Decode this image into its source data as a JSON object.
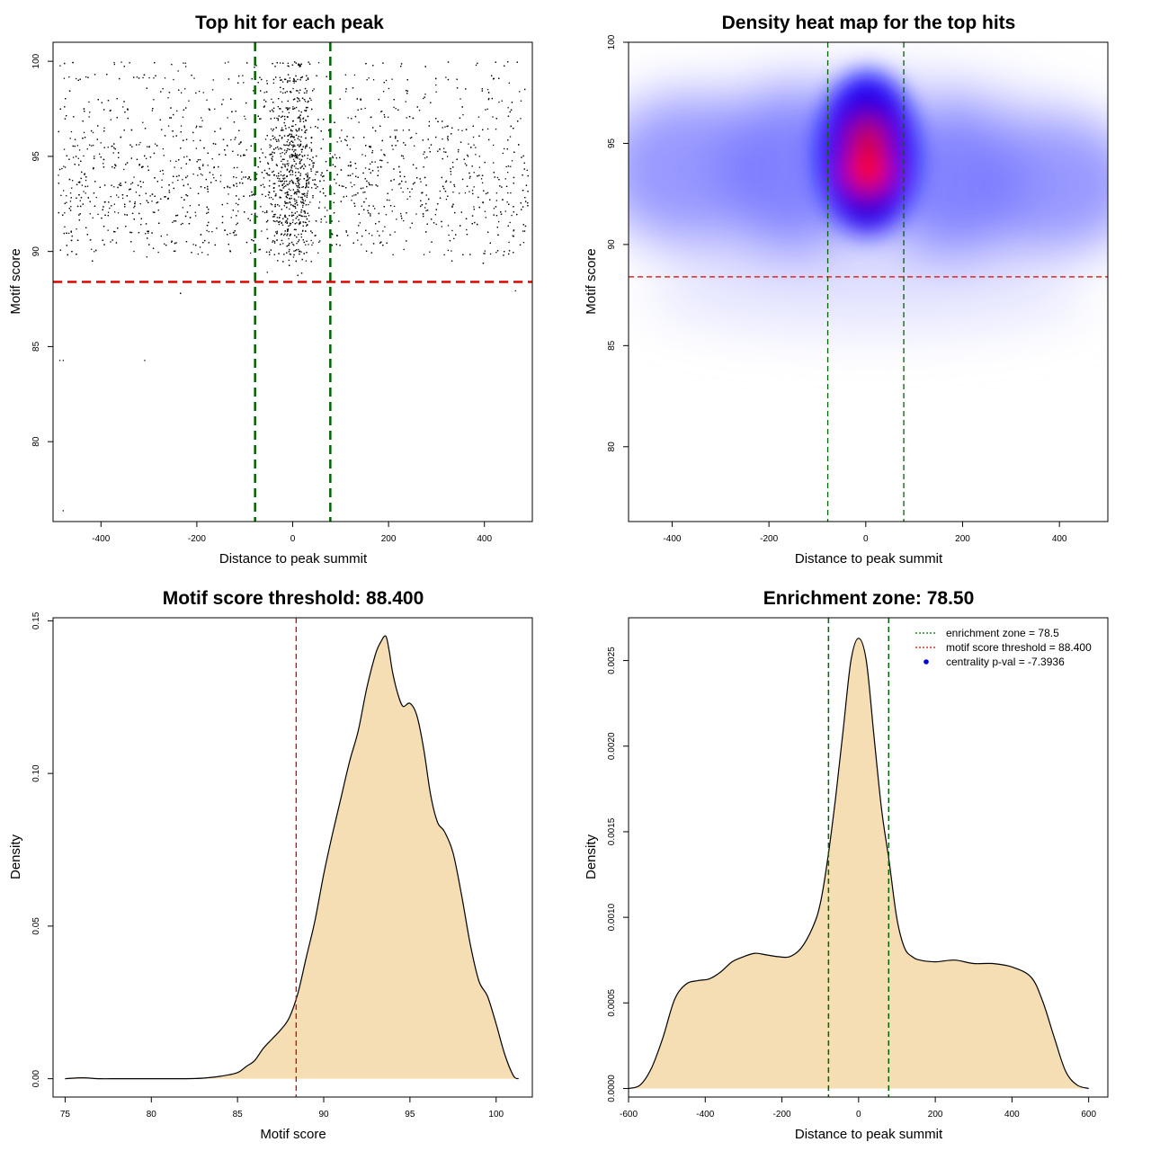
{
  "chart_data": [
    {
      "type": "scatter",
      "title": "Top hit for each peak",
      "xlabel": "Distance to peak summit",
      "ylabel": "Motif score",
      "xlim": [
        -500,
        500
      ],
      "ylim": [
        75.8,
        101
      ],
      "xticks": [
        -400,
        -200,
        0,
        200,
        400
      ],
      "yticks": [
        80,
        85,
        90,
        95,
        100
      ],
      "points_summary": "approximately 5000 points; x spread roughly uniform in [-500, 500] with concentration in [-80, 80]; y mostly between 88 and 100 with concentration near 94",
      "hlines": [
        {
          "y": 88.4,
          "color": "#dd0000",
          "style": "dashed"
        }
      ],
      "vlines": [
        {
          "x": -78.5,
          "color": "#006400",
          "style": "dashed"
        },
        {
          "x": 78.5,
          "color": "#006400",
          "style": "dashed"
        }
      ]
    },
    {
      "type": "heatmap",
      "title": "Density heat map for the top hits",
      "xlabel": "Distance to peak summit",
      "ylabel": "Motif score",
      "xlim": [
        -490,
        500
      ],
      "ylim": [
        76.3,
        100
      ],
      "xticks": [
        -400,
        -200,
        0,
        200,
        400
      ],
      "yticks": [
        80,
        85,
        90,
        95,
        100
      ],
      "color_scale": [
        "#ffffff",
        "#0000ff",
        "#ff0000"
      ],
      "peak": {
        "x": 0,
        "y": 93.7
      },
      "hlines": [
        {
          "y": 88.4,
          "color": "#dd0000",
          "style": "dashed"
        }
      ],
      "vlines": [
        {
          "x": -78.5,
          "color": "#006400",
          "style": "dashed"
        },
        {
          "x": 78.5,
          "color": "#006400",
          "style": "dashed"
        }
      ]
    },
    {
      "type": "area",
      "title": "Motif score threshold: 88.400",
      "xlabel": "Motif score",
      "ylabel": "Density",
      "xlim": [
        74.3,
        102.1
      ],
      "ylim": [
        -0.006,
        0.151
      ],
      "xticks": [
        75,
        80,
        85,
        90,
        95,
        100
      ],
      "yticks": [
        0.0,
        0.05,
        0.1,
        0.15
      ],
      "ytick_labels": [
        "0.00",
        "0.05",
        "0.10",
        "0.15"
      ],
      "fill": "#f5deb3",
      "x": [
        75,
        76,
        77,
        78,
        79,
        80,
        81,
        82,
        83,
        84,
        85,
        85.5,
        86,
        86.5,
        87,
        87.5,
        88,
        88.5,
        89,
        89.5,
        90,
        90.5,
        91,
        91.5,
        92,
        92.5,
        93,
        93.3,
        93.6,
        93.8,
        94,
        94.3,
        94.6,
        95,
        95.4,
        95.8,
        96.2,
        96.6,
        97,
        97.5,
        98,
        98.5,
        99,
        99.5,
        100,
        100.5,
        101,
        101.3
      ],
      "y": [
        0.0,
        0.0003,
        0.0,
        0.0,
        0.0,
        0.0,
        0.0,
        0.0,
        0.0002,
        0.0008,
        0.002,
        0.004,
        0.006,
        0.01,
        0.013,
        0.016,
        0.02,
        0.028,
        0.04,
        0.052,
        0.067,
        0.08,
        0.092,
        0.104,
        0.114,
        0.128,
        0.139,
        0.143,
        0.145,
        0.14,
        0.133,
        0.126,
        0.122,
        0.123,
        0.119,
        0.108,
        0.093,
        0.084,
        0.081,
        0.074,
        0.06,
        0.044,
        0.032,
        0.027,
        0.018,
        0.008,
        0.001,
        0.0
      ]
    },
    {
      "type": "area",
      "title": "Enrichment zone: 78.50",
      "xlabel": "Distance to peak summit",
      "ylabel": "Density",
      "xlim": [
        -600,
        650
      ],
      "ylim": [
        -5e-05,
        0.00275
      ],
      "xticks": [
        -600,
        -400,
        -200,
        0,
        200,
        400,
        600
      ],
      "yticks": [
        0.0,
        0.0005,
        0.001,
        0.0015,
        0.002,
        0.0025
      ],
      "ytick_labels": [
        "0.0000",
        "0.0005",
        "0.0010",
        "0.0015",
        "0.0020",
        "0.0025"
      ],
      "fill": "#f5deb3",
      "x": [
        -600,
        -570,
        -540,
        -510,
        -480,
        -450,
        -420,
        -390,
        -360,
        -330,
        -300,
        -270,
        -240,
        -210,
        -180,
        -150,
        -120,
        -100,
        -80,
        -60,
        -40,
        -20,
        0,
        20,
        40,
        60,
        80,
        100,
        120,
        140,
        160,
        200,
        250,
        300,
        350,
        400,
        450,
        480,
        510,
        540,
        570,
        600
      ],
      "y": [
        0.0,
        2e-05,
        0.00012,
        0.0003,
        0.00052,
        0.00061,
        0.00063,
        0.00064,
        0.00068,
        0.00074,
        0.00077,
        0.00079,
        0.00078,
        0.00077,
        0.00077,
        0.00082,
        0.00094,
        0.00108,
        0.00135,
        0.0017,
        0.0021,
        0.0025,
        0.00263,
        0.0025,
        0.00206,
        0.00163,
        0.00132,
        0.00099,
        0.00082,
        0.00077,
        0.00075,
        0.00074,
        0.00075,
        0.00073,
        0.00073,
        0.00071,
        0.00065,
        0.00051,
        0.0003,
        0.0001,
        2e-05,
        0.0
      ],
      "vlines": [
        {
          "x": -78.5,
          "color": "#006400",
          "style": "dashed"
        },
        {
          "x": 78.5,
          "color": "#006400",
          "style": "dashed"
        }
      ],
      "legend": [
        {
          "label": "enrichment zone = 78.5",
          "style": "dotted-line",
          "color": "#006400"
        },
        {
          "label": "motif score threshold = 88.400",
          "style": "dotted-line",
          "color": "#dd0000"
        },
        {
          "label": "centrality p-val = -7.3936",
          "style": "point",
          "color": "#0000cc"
        }
      ],
      "legend_position": "top-right"
    }
  ]
}
